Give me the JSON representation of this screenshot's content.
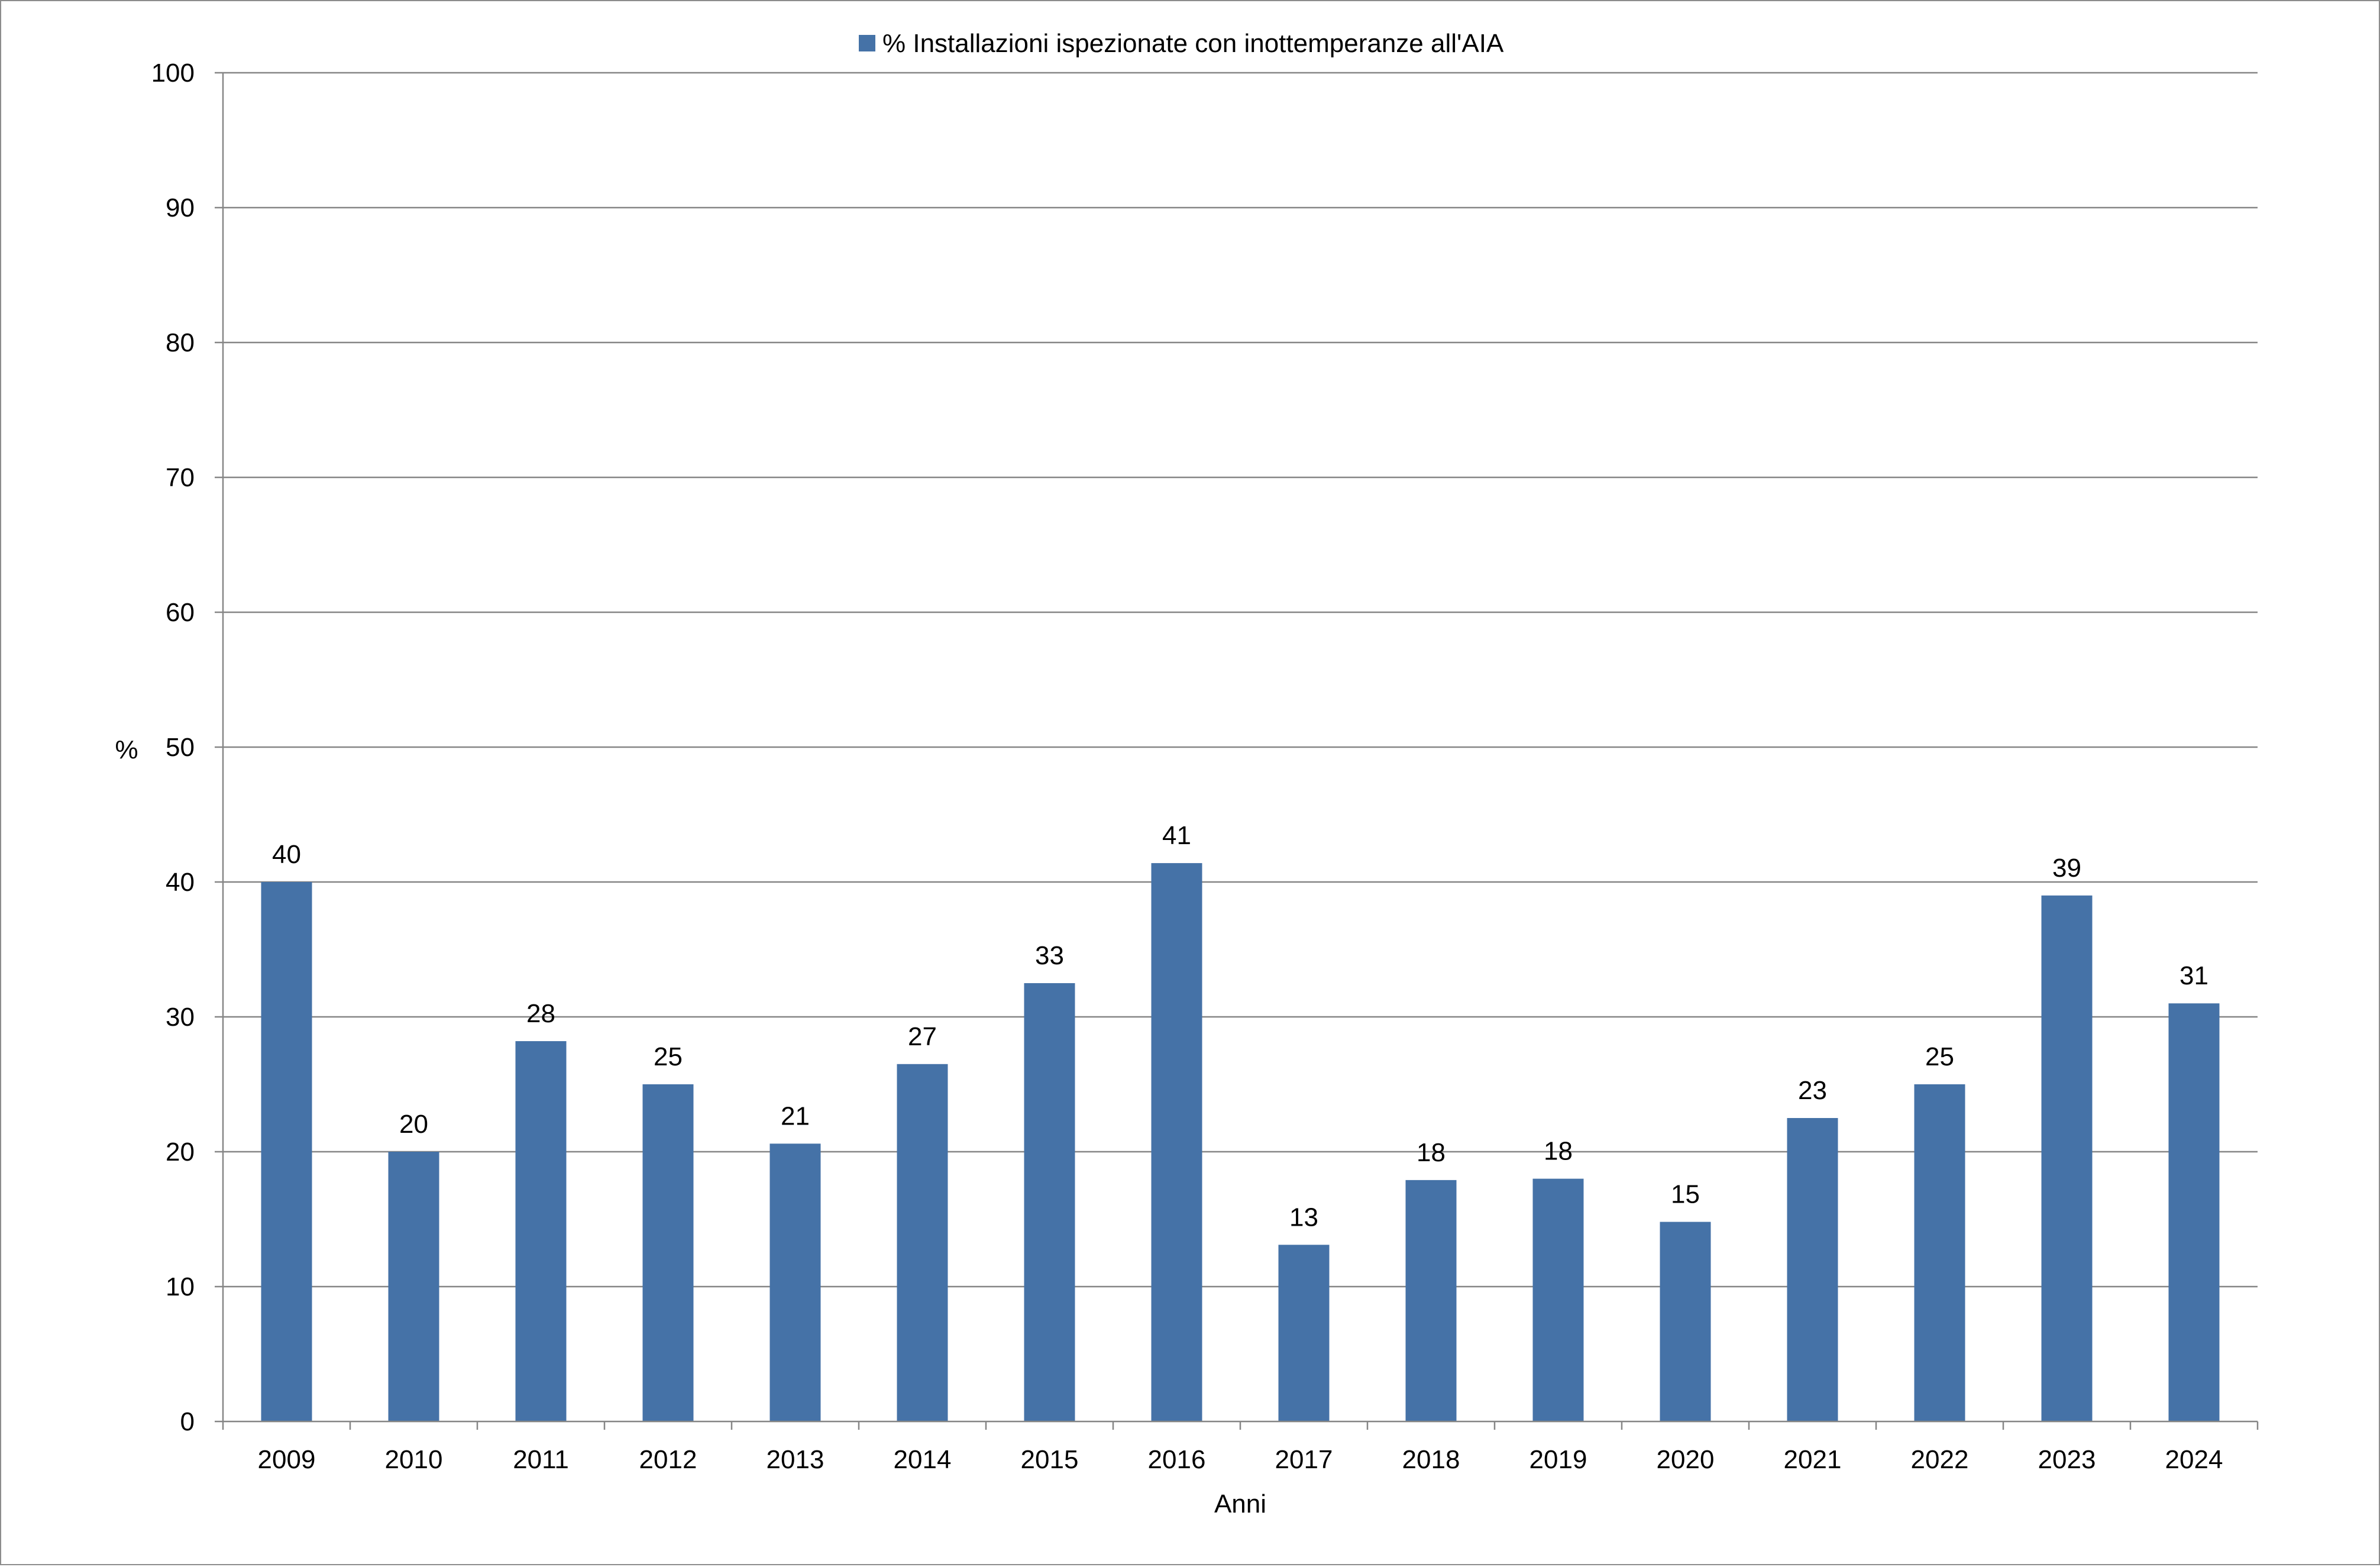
{
  "chart_data": {
    "type": "bar",
    "title": "",
    "xlabel": "Anni",
    "ylabel": "%",
    "ylim": [
      0,
      100
    ],
    "yticks": [
      0,
      10,
      20,
      30,
      40,
      50,
      60,
      70,
      80,
      90,
      100
    ],
    "grid": true,
    "legend_position": "top",
    "categories": [
      "2009",
      "2010",
      "2011",
      "2012",
      "2013",
      "2014",
      "2015",
      "2016",
      "2017",
      "2018",
      "2019",
      "2020",
      "2021",
      "2022",
      "2023",
      "2024"
    ],
    "series": [
      {
        "name": "% Installazioni ispezionate con inottemperanze all'AIA",
        "color": "#4572a7",
        "values": [
          40,
          20,
          28.2,
          25,
          20.6,
          26.5,
          32.5,
          41.4,
          13.1,
          17.9,
          18,
          14.8,
          22.5,
          25,
          39,
          31
        ],
        "labels": [
          "40",
          "20",
          "28",
          "25",
          "21",
          "27",
          "33",
          "41",
          "13",
          "18",
          "18",
          "15",
          "23",
          "25",
          "39",
          "31"
        ]
      }
    ]
  }
}
